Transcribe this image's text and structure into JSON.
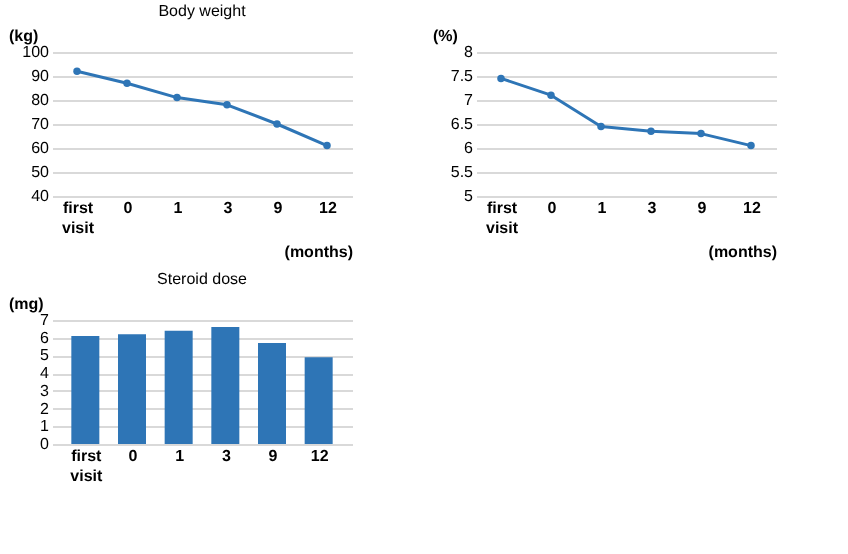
{
  "chart_data": [
    {
      "type": "line",
      "title": "Body weight",
      "ylabel": "(kg)",
      "xlabel": "(months)",
      "categories": [
        "first visit",
        "0",
        "1",
        "3",
        "9",
        "12"
      ],
      "values": [
        92,
        87,
        81,
        78,
        70,
        61
      ],
      "color": "#2e75b6",
      "ylim": [
        40,
        100
      ],
      "yticks": [
        40,
        50,
        60,
        70,
        80,
        90,
        100
      ],
      "grid": "y",
      "marker": "circle"
    },
    {
      "type": "line",
      "ylabel": "(%)",
      "xlabel": "(months)",
      "categories": [
        "first visit",
        "0",
        "1",
        "3",
        "9",
        "12"
      ],
      "values": [
        7.45,
        7.1,
        6.45,
        6.35,
        6.3,
        6.05
      ],
      "color": "#2e75b6",
      "ylim": [
        5,
        8
      ],
      "yticks": [
        5,
        5.5,
        6,
        6.5,
        7,
        7.5,
        8
      ],
      "grid": "y",
      "marker": "circle"
    },
    {
      "type": "bar",
      "title": "Steroid dose",
      "ylabel": "(mg)",
      "categories": [
        "first visit",
        "0",
        "1",
        "3",
        "9",
        "12"
      ],
      "values": [
        6.1,
        6.2,
        6.4,
        6.6,
        5.7,
        4.9
      ],
      "color": "#2e75b6",
      "ylim": [
        0,
        7
      ],
      "yticks": [
        0,
        1,
        2,
        3,
        4,
        5,
        6,
        7
      ],
      "grid": "y"
    }
  ]
}
